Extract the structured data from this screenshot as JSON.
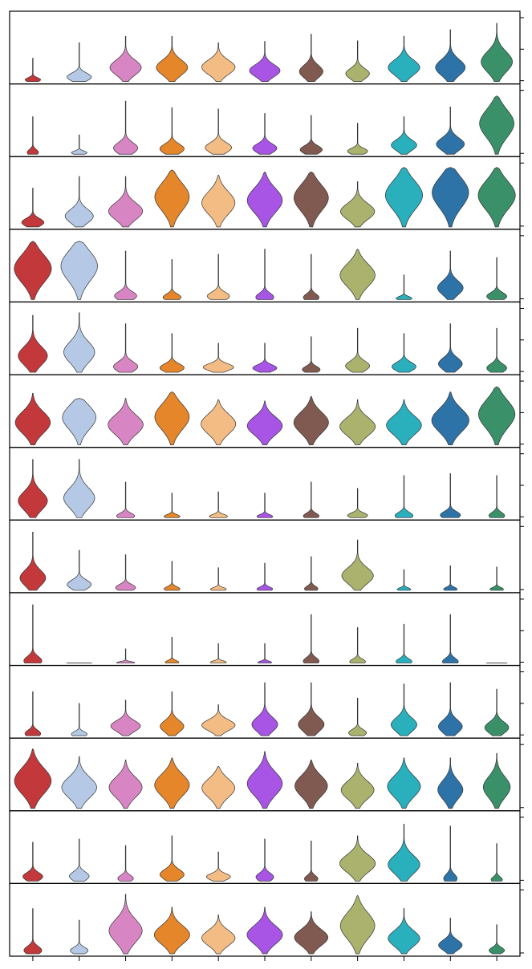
{
  "chart_data": {
    "type": "stacked_violin",
    "categories": [
      "",
      "",
      "",
      "",
      "",
      "",
      "",
      "",
      "",
      "",
      ""
    ],
    "category_colors": [
      "#c3393b",
      "#b5c9e6",
      "#d786c3",
      "#e5862b",
      "#f2bc84",
      "#a855e6",
      "#805a50",
      "#aab26d",
      "#2aafbd",
      "#2e73a8",
      "#3a9169"
    ],
    "rows": [
      {
        "yticks": 3,
        "violins": [
          {
            "h": 0.36,
            "w": 0.35,
            "m": 0.08,
            "p": 1.5
          },
          {
            "h": 0.6,
            "w": 0.55,
            "m": 0.12,
            "p": 1.2
          },
          {
            "h": 0.7,
            "w": 0.75,
            "m": 0.32,
            "p": 0.9
          },
          {
            "h": 0.7,
            "w": 0.75,
            "m": 0.32,
            "p": 0.9
          },
          {
            "h": 0.6,
            "w": 0.8,
            "m": 0.38,
            "p": 0.7
          },
          {
            "h": 0.62,
            "w": 0.72,
            "m": 0.28,
            "p": 0.9
          },
          {
            "h": 0.73,
            "w": 0.55,
            "m": 0.22,
            "p": 1.1
          },
          {
            "h": 0.63,
            "w": 0.55,
            "m": 0.2,
            "p": 1.1
          },
          {
            "h": 0.7,
            "w": 0.75,
            "m": 0.32,
            "p": 0.8
          },
          {
            "h": 0.8,
            "w": 0.7,
            "m": 0.28,
            "p": 0.9
          },
          {
            "h": 0.9,
            "w": 0.75,
            "m": 0.35,
            "p": 0.8
          }
        ]
      },
      {
        "yticks": 2,
        "violins": [
          {
            "h": 0.58,
            "w": 0.25,
            "m": 0.05,
            "p": 1.8
          },
          {
            "h": 0.3,
            "w": 0.35,
            "m": 0.08,
            "p": 1.6
          },
          {
            "h": 0.82,
            "w": 0.55,
            "m": 0.12,
            "p": 1.3
          },
          {
            "h": 0.72,
            "w": 0.55,
            "m": 0.12,
            "p": 1.3
          },
          {
            "h": 0.7,
            "w": 0.6,
            "m": 0.15,
            "p": 1.1
          },
          {
            "h": 0.63,
            "w": 0.55,
            "m": 0.15,
            "p": 1.1
          },
          {
            "h": 0.6,
            "w": 0.5,
            "m": 0.12,
            "p": 1.2
          },
          {
            "h": 0.48,
            "w": 0.45,
            "m": 0.1,
            "p": 1.3
          },
          {
            "h": 0.58,
            "w": 0.6,
            "m": 0.25,
            "p": 1.0
          },
          {
            "h": 0.73,
            "w": 0.65,
            "m": 0.22,
            "p": 1.0
          },
          {
            "h": 0.9,
            "w": 0.85,
            "m": 0.55,
            "p": 0.5
          }
        ]
      },
      {
        "yticks": 2,
        "violins": [
          {
            "h": 0.6,
            "w": 0.5,
            "m": 0.12,
            "p": 1.1
          },
          {
            "h": 0.78,
            "w": 0.65,
            "m": 0.22,
            "p": 0.9
          },
          {
            "h": 0.78,
            "w": 0.8,
            "m": 0.32,
            "p": 0.7
          },
          {
            "h": 0.88,
            "w": 0.85,
            "m": 0.55,
            "p": 0.5
          },
          {
            "h": 0.8,
            "w": 0.8,
            "m": 0.48,
            "p": 0.5
          },
          {
            "h": 0.85,
            "w": 0.85,
            "m": 0.5,
            "p": 0.5
          },
          {
            "h": 0.85,
            "w": 0.85,
            "m": 0.55,
            "p": 0.5
          },
          {
            "h": 0.7,
            "w": 0.8,
            "m": 0.35,
            "p": 0.6
          },
          {
            "h": 0.92,
            "w": 0.9,
            "m": 0.55,
            "p": 0.4
          },
          {
            "h": 0.92,
            "w": 0.9,
            "m": 0.6,
            "p": 0.4
          },
          {
            "h": 0.92,
            "w": 0.9,
            "m": 0.55,
            "p": 0.4
          }
        ]
      },
      {
        "yticks": 2,
        "violins": [
          {
            "h": 0.9,
            "w": 0.9,
            "m": 0.55,
            "p": 0.4
          },
          {
            "h": 0.9,
            "w": 0.9,
            "m": 0.6,
            "p": 0.4
          },
          {
            "h": 0.75,
            "w": 0.5,
            "m": 0.08,
            "p": 1.6
          },
          {
            "h": 0.62,
            "w": 0.4,
            "m": 0.06,
            "p": 1.8
          },
          {
            "h": 0.7,
            "w": 0.5,
            "m": 0.08,
            "p": 1.7
          },
          {
            "h": 0.78,
            "w": 0.4,
            "m": 0.05,
            "p": 1.9
          },
          {
            "h": 0.7,
            "w": 0.35,
            "m": 0.05,
            "p": 2.0
          },
          {
            "h": 0.78,
            "w": 0.85,
            "m": 0.5,
            "p": 0.5
          },
          {
            "h": 0.38,
            "w": 0.35,
            "m": 0.05,
            "p": 1.8
          },
          {
            "h": 0.75,
            "w": 0.6,
            "m": 0.25,
            "p": 1.0
          },
          {
            "h": 0.65,
            "w": 0.45,
            "m": 0.08,
            "p": 1.6
          }
        ]
      },
      {
        "yticks": 3,
        "violins": [
          {
            "h": 0.88,
            "w": 0.7,
            "m": 0.3,
            "p": 1.0
          },
          {
            "h": 0.92,
            "w": 0.75,
            "m": 0.35,
            "p": 0.9
          },
          {
            "h": 0.75,
            "w": 0.55,
            "m": 0.12,
            "p": 1.3
          },
          {
            "h": 0.6,
            "w": 0.55,
            "m": 0.12,
            "p": 1.3
          },
          {
            "h": 0.45,
            "w": 0.7,
            "m": 0.18,
            "p": 1.1
          },
          {
            "h": 0.45,
            "w": 0.55,
            "m": 0.15,
            "p": 1.2
          },
          {
            "h": 0.55,
            "w": 0.4,
            "m": 0.08,
            "p": 1.5
          },
          {
            "h": 0.68,
            "w": 0.55,
            "m": 0.15,
            "p": 1.2
          },
          {
            "h": 0.6,
            "w": 0.55,
            "m": 0.15,
            "p": 1.2
          },
          {
            "h": 0.75,
            "w": 0.55,
            "m": 0.18,
            "p": 1.1
          },
          {
            "h": 0.68,
            "w": 0.45,
            "m": 0.1,
            "p": 1.4
          }
        ]
      },
      {
        "yticks": 3,
        "violins": [
          {
            "h": 0.8,
            "w": 0.85,
            "m": 0.45,
            "p": 0.6
          },
          {
            "h": 0.72,
            "w": 0.85,
            "m": 0.62,
            "p": 0.5
          },
          {
            "h": 0.72,
            "w": 0.85,
            "m": 0.45,
            "p": 0.6
          },
          {
            "h": 0.82,
            "w": 0.85,
            "m": 0.55,
            "p": 0.5
          },
          {
            "h": 0.7,
            "w": 0.85,
            "m": 0.48,
            "p": 0.6
          },
          {
            "h": 0.68,
            "w": 0.85,
            "m": 0.45,
            "p": 0.6
          },
          {
            "h": 0.75,
            "w": 0.85,
            "m": 0.48,
            "p": 0.6
          },
          {
            "h": 0.7,
            "w": 0.85,
            "m": 0.42,
            "p": 0.6
          },
          {
            "h": 0.7,
            "w": 0.85,
            "m": 0.45,
            "p": 0.6
          },
          {
            "h": 0.82,
            "w": 0.9,
            "m": 0.48,
            "p": 0.5
          },
          {
            "h": 0.9,
            "w": 0.9,
            "m": 0.55,
            "p": 0.5
          }
        ]
      },
      {
        "yticks": 3,
        "violins": [
          {
            "h": 0.9,
            "w": 0.7,
            "m": 0.3,
            "p": 1.0
          },
          {
            "h": 0.9,
            "w": 0.75,
            "m": 0.35,
            "p": 0.9
          },
          {
            "h": 0.55,
            "w": 0.4,
            "m": 0.05,
            "p": 1.8
          },
          {
            "h": 0.38,
            "w": 0.35,
            "m": 0.05,
            "p": 1.9
          },
          {
            "h": 0.4,
            "w": 0.4,
            "m": 0.05,
            "p": 1.8
          },
          {
            "h": 0.38,
            "w": 0.35,
            "m": 0.05,
            "p": 1.9
          },
          {
            "h": 0.55,
            "w": 0.35,
            "m": 0.05,
            "p": 1.9
          },
          {
            "h": 0.45,
            "w": 0.45,
            "m": 0.08,
            "p": 1.5
          },
          {
            "h": 0.65,
            "w": 0.4,
            "m": 0.05,
            "p": 1.9
          },
          {
            "h": 0.68,
            "w": 0.45,
            "m": 0.06,
            "p": 1.8
          },
          {
            "h": 0.65,
            "w": 0.35,
            "m": 0.05,
            "p": 1.9
          }
        ]
      },
      {
        "yticks": 2,
        "violins": [
          {
            "h": 0.9,
            "w": 0.6,
            "m": 0.22,
            "p": 1.1
          },
          {
            "h": 0.62,
            "w": 0.55,
            "m": 0.15,
            "p": 1.2
          },
          {
            "h": 0.55,
            "w": 0.45,
            "m": 0.08,
            "p": 1.6
          },
          {
            "h": 0.45,
            "w": 0.35,
            "m": 0.05,
            "p": 1.9
          },
          {
            "h": 0.35,
            "w": 0.35,
            "m": 0.05,
            "p": 1.9
          },
          {
            "h": 0.42,
            "w": 0.35,
            "m": 0.05,
            "p": 1.9
          },
          {
            "h": 0.52,
            "w": 0.3,
            "m": 0.05,
            "p": 2.0
          },
          {
            "h": 0.78,
            "w": 0.75,
            "m": 0.3,
            "p": 0.9
          },
          {
            "h": 0.32,
            "w": 0.3,
            "m": 0.05,
            "p": 2.0
          },
          {
            "h": 0.38,
            "w": 0.3,
            "m": 0.05,
            "p": 2.0
          },
          {
            "h": 0.36,
            "w": 0.3,
            "m": 0.05,
            "p": 2.0
          }
        ]
      },
      {
        "yticks": 3,
        "violins": [
          {
            "h": 0.9,
            "w": 0.4,
            "m": 0.04,
            "p": 2.0
          },
          {
            "h": 0.0,
            "w": 0.55,
            "m": 0.03,
            "p": 2.0
          },
          {
            "h": 0.22,
            "w": 0.4,
            "m": 0.03,
            "p": 2.0
          },
          {
            "h": 0.4,
            "w": 0.3,
            "m": 0.03,
            "p": 2.0
          },
          {
            "h": 0.3,
            "w": 0.35,
            "m": 0.04,
            "p": 2.0
          },
          {
            "h": 0.3,
            "w": 0.3,
            "m": 0.03,
            "p": 2.0
          },
          {
            "h": 0.75,
            "w": 0.35,
            "m": 0.04,
            "p": 2.0
          },
          {
            "h": 0.55,
            "w": 0.35,
            "m": 0.04,
            "p": 2.0
          },
          {
            "h": 0.6,
            "w": 0.35,
            "m": 0.04,
            "p": 2.0
          },
          {
            "h": 0.75,
            "w": 0.35,
            "m": 0.03,
            "p": 2.0
          },
          {
            "h": 0.0,
            "w": 0.45,
            "m": 0.02,
            "p": 2.0
          }
        ]
      },
      {
        "yticks": 3,
        "violins": [
          {
            "h": 0.68,
            "w": 0.35,
            "m": 0.05,
            "p": 1.8
          },
          {
            "h": 0.5,
            "w": 0.35,
            "m": 0.05,
            "p": 1.8
          },
          {
            "h": 0.55,
            "w": 0.7,
            "m": 0.28,
            "p": 0.9
          },
          {
            "h": 0.68,
            "w": 0.55,
            "m": 0.22,
            "p": 1.0
          },
          {
            "h": 0.48,
            "w": 0.8,
            "m": 0.35,
            "p": 0.8
          },
          {
            "h": 0.82,
            "w": 0.6,
            "m": 0.22,
            "p": 1.0
          },
          {
            "h": 0.82,
            "w": 0.6,
            "m": 0.22,
            "p": 1.0
          },
          {
            "h": 0.58,
            "w": 0.4,
            "m": 0.08,
            "p": 1.5
          },
          {
            "h": 0.8,
            "w": 0.6,
            "m": 0.22,
            "p": 1.0
          },
          {
            "h": 0.82,
            "w": 0.55,
            "m": 0.18,
            "p": 1.1
          },
          {
            "h": 0.72,
            "w": 0.55,
            "m": 0.18,
            "p": 1.1
          }
        ]
      },
      {
        "yticks": 2,
        "violins": [
          {
            "h": 0.92,
            "w": 0.9,
            "m": 0.48,
            "p": 0.6
          },
          {
            "h": 0.8,
            "w": 0.85,
            "m": 0.42,
            "p": 0.7
          },
          {
            "h": 0.75,
            "w": 0.8,
            "m": 0.45,
            "p": 0.6
          },
          {
            "h": 0.78,
            "w": 0.85,
            "m": 0.48,
            "p": 0.6
          },
          {
            "h": 0.65,
            "w": 0.8,
            "m": 0.5,
            "p": 0.5
          },
          {
            "h": 0.88,
            "w": 0.85,
            "m": 0.45,
            "p": 0.6
          },
          {
            "h": 0.75,
            "w": 0.8,
            "m": 0.48,
            "p": 0.6
          },
          {
            "h": 0.7,
            "w": 0.8,
            "m": 0.42,
            "p": 0.7
          },
          {
            "h": 0.78,
            "w": 0.8,
            "m": 0.45,
            "p": 0.6
          },
          {
            "h": 0.78,
            "w": 0.6,
            "m": 0.38,
            "p": 0.7
          },
          {
            "h": 0.85,
            "w": 0.65,
            "m": 0.4,
            "p": 0.7
          }
        ]
      },
      {
        "yticks": 2,
        "violins": [
          {
            "h": 0.6,
            "w": 0.45,
            "m": 0.12,
            "p": 1.2
          },
          {
            "h": 0.65,
            "w": 0.45,
            "m": 0.12,
            "p": 1.3
          },
          {
            "h": 0.55,
            "w": 0.35,
            "m": 0.08,
            "p": 1.5
          },
          {
            "h": 0.7,
            "w": 0.55,
            "m": 0.15,
            "p": 1.2
          },
          {
            "h": 0.45,
            "w": 0.55,
            "m": 0.15,
            "p": 1.1
          },
          {
            "h": 0.65,
            "w": 0.4,
            "m": 0.1,
            "p": 1.5
          },
          {
            "h": 0.62,
            "w": 0.3,
            "m": 0.06,
            "p": 1.7
          },
          {
            "h": 0.7,
            "w": 0.85,
            "m": 0.4,
            "p": 0.6
          },
          {
            "h": 0.88,
            "w": 0.75,
            "m": 0.3,
            "p": 0.8
          },
          {
            "h": 0.85,
            "w": 0.3,
            "m": 0.05,
            "p": 1.9
          },
          {
            "h": 0.58,
            "w": 0.25,
            "m": 0.04,
            "p": 2.0
          }
        ]
      },
      {
        "yticks": 2,
        "violins": [
          {
            "h": 0.7,
            "w": 0.4,
            "m": 0.08,
            "p": 1.5
          },
          {
            "h": 0.52,
            "w": 0.4,
            "m": 0.1,
            "p": 1.4
          },
          {
            "h": 0.92,
            "w": 0.8,
            "m": 0.4,
            "p": 0.7
          },
          {
            "h": 0.72,
            "w": 0.85,
            "m": 0.42,
            "p": 0.6
          },
          {
            "h": 0.6,
            "w": 0.8,
            "m": 0.42,
            "p": 0.6
          },
          {
            "h": 0.72,
            "w": 0.85,
            "m": 0.42,
            "p": 0.6
          },
          {
            "h": 0.65,
            "w": 0.8,
            "m": 0.4,
            "p": 0.6
          },
          {
            "h": 0.9,
            "w": 0.85,
            "m": 0.5,
            "p": 0.6
          },
          {
            "h": 0.7,
            "w": 0.75,
            "m": 0.35,
            "p": 0.7
          },
          {
            "h": 0.55,
            "w": 0.55,
            "m": 0.25,
            "p": 0.9
          },
          {
            "h": 0.45,
            "w": 0.35,
            "m": 0.12,
            "p": 1.3
          }
        ]
      }
    ]
  }
}
